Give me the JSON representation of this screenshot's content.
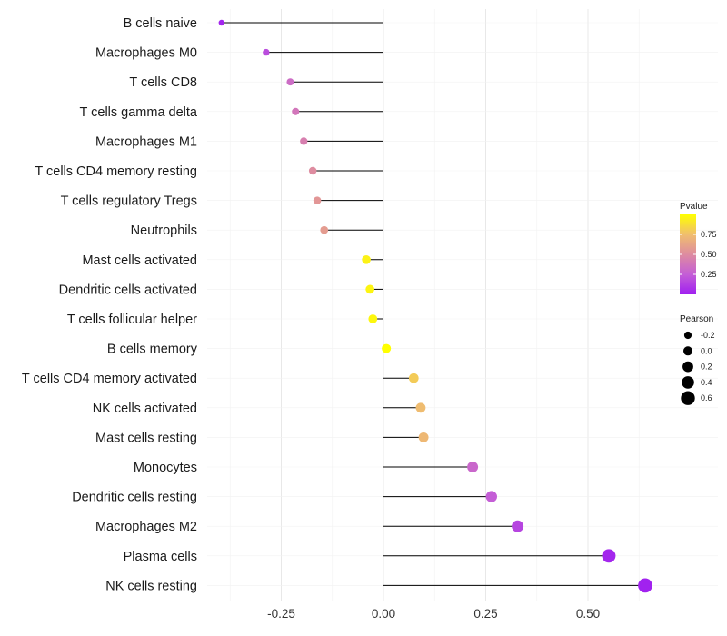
{
  "chart_data": {
    "type": "lollipop",
    "title": "",
    "xlabel": "",
    "ylabel": "",
    "xlim": [
      -0.4,
      0.65
    ],
    "x_ticks": [
      -0.25,
      0.0,
      0.25,
      0.5
    ],
    "x_tick_labels": [
      "-0.25",
      "0.00",
      "0.25",
      "0.50"
    ],
    "grid": true,
    "baseline": 0,
    "categories": [
      "B cells naive",
      "Macrophages M0",
      "T cells CD8",
      "T cells gamma delta",
      "Macrophages M1",
      "T cells CD4 memory resting",
      "T cells regulatory  Tregs ",
      "Neutrophils",
      "Mast cells activated",
      "Dendritic cells activated",
      "T cells follicular helper",
      "B cells memory",
      "T cells CD4 memory activated",
      "NK cells activated",
      "Mast cells resting",
      "Monocytes",
      "Dendritic cells resting",
      "Macrophages M2",
      "Plasma cells",
      "NK cells resting"
    ],
    "pearson": [
      -0.396,
      -0.287,
      -0.228,
      -0.215,
      -0.195,
      -0.173,
      -0.162,
      -0.145,
      -0.042,
      -0.033,
      -0.026,
      0.007,
      0.074,
      0.091,
      0.098,
      0.218,
      0.264,
      0.328,
      0.551,
      0.64
    ],
    "pvalue": [
      0.02,
      0.18,
      0.33,
      0.38,
      0.43,
      0.5,
      0.55,
      0.58,
      0.95,
      0.96,
      0.97,
      1.0,
      0.8,
      0.74,
      0.72,
      0.3,
      0.25,
      0.15,
      0.03,
      0.01
    ],
    "legend_color": {
      "title": "Pvalue",
      "ticks": [
        0.25,
        0.5,
        0.75
      ],
      "tick_labels": [
        "0.25",
        "0.50",
        "0.75"
      ],
      "low_color": "#A020F0",
      "high_color": "#FFFF00"
    },
    "legend_size": {
      "title": "Pearson",
      "values": [
        -0.2,
        0.0,
        0.2,
        0.4,
        0.6
      ],
      "labels": [
        "-0.2",
        "0.0",
        "0.2",
        "0.4",
        "0.6"
      ]
    }
  }
}
